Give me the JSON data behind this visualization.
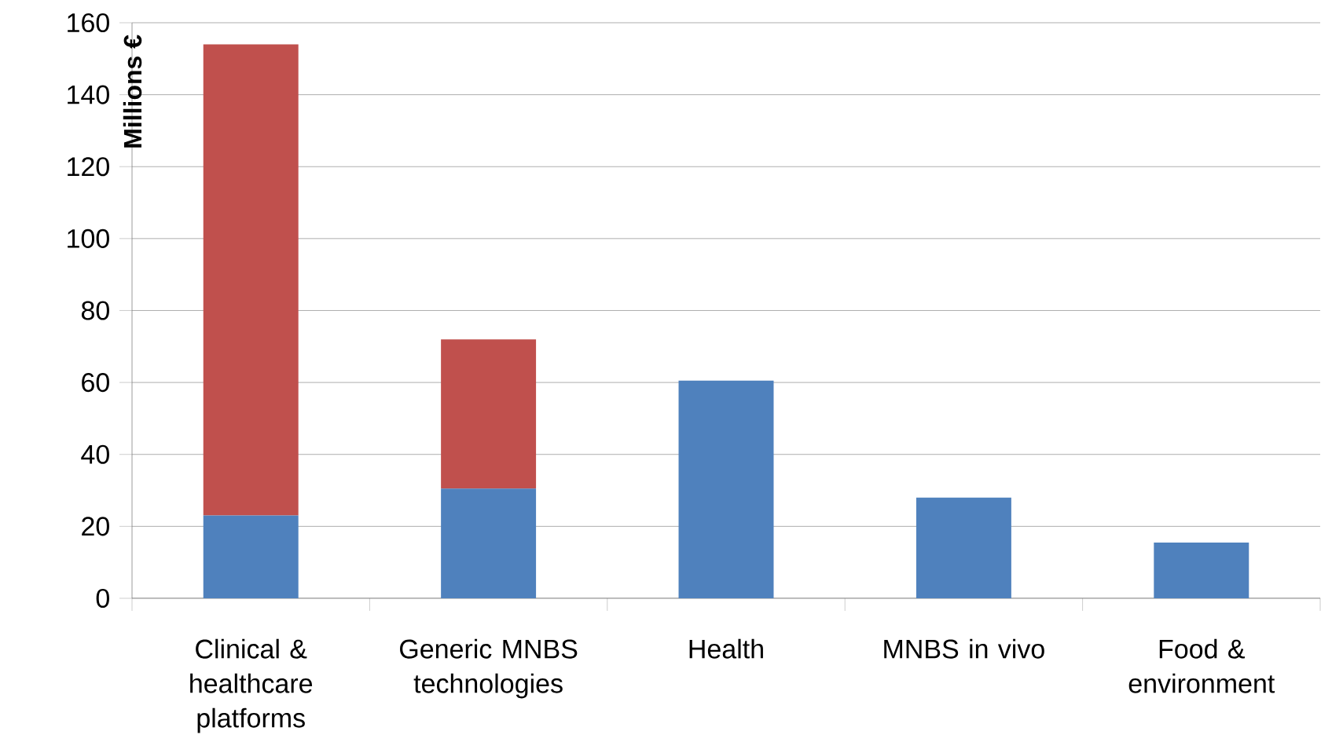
{
  "chart_data": {
    "type": "bar",
    "stacked": true,
    "ylabel": "Millions €",
    "categories": [
      "Clinical & healthcare platforms",
      "Generic MNBS technologies",
      "Health",
      "MNBS in vivo",
      "Food & environment"
    ],
    "series": [
      {
        "color": "#4f81bd",
        "values": [
          23,
          30.5,
          60.5,
          28,
          15.5
        ]
      },
      {
        "color": "#c0504d",
        "values": [
          131,
          41.5,
          null,
          null,
          null
        ]
      }
    ],
    "ylim": [
      0,
      160
    ],
    "yticks": [
      0,
      20,
      40,
      60,
      80,
      100,
      120,
      140,
      160
    ],
    "grid": "y"
  }
}
